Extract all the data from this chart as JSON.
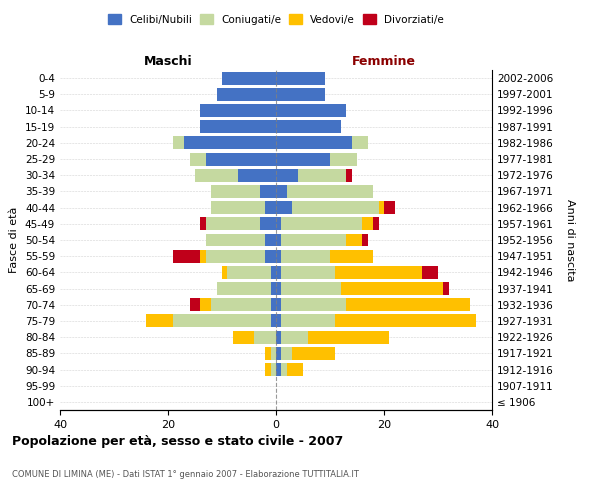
{
  "age_groups": [
    "100+",
    "95-99",
    "90-94",
    "85-89",
    "80-84",
    "75-79",
    "70-74",
    "65-69",
    "60-64",
    "55-59",
    "50-54",
    "45-49",
    "40-44",
    "35-39",
    "30-34",
    "25-29",
    "20-24",
    "15-19",
    "10-14",
    "5-9",
    "0-4"
  ],
  "birth_years": [
    "≤ 1906",
    "1907-1911",
    "1912-1916",
    "1917-1921",
    "1922-1926",
    "1927-1931",
    "1932-1936",
    "1937-1941",
    "1942-1946",
    "1947-1951",
    "1952-1956",
    "1957-1961",
    "1962-1966",
    "1967-1971",
    "1972-1976",
    "1977-1981",
    "1982-1986",
    "1987-1991",
    "1992-1996",
    "1997-2001",
    "2002-2006"
  ],
  "males": {
    "celibi": [
      0,
      0,
      0,
      0,
      0,
      1,
      1,
      1,
      1,
      2,
      2,
      3,
      2,
      3,
      7,
      13,
      17,
      14,
      14,
      11,
      10
    ],
    "coniugati": [
      0,
      0,
      1,
      1,
      4,
      18,
      11,
      10,
      8,
      11,
      11,
      10,
      10,
      9,
      8,
      3,
      2,
      0,
      0,
      0,
      0
    ],
    "vedovi": [
      0,
      0,
      1,
      1,
      4,
      5,
      2,
      0,
      1,
      1,
      0,
      0,
      0,
      0,
      0,
      0,
      0,
      0,
      0,
      0,
      0
    ],
    "divorziati": [
      0,
      0,
      0,
      0,
      0,
      0,
      2,
      0,
      0,
      5,
      0,
      1,
      0,
      0,
      0,
      0,
      0,
      0,
      0,
      0,
      0
    ]
  },
  "females": {
    "nubili": [
      0,
      0,
      1,
      1,
      1,
      1,
      1,
      1,
      1,
      1,
      1,
      1,
      3,
      2,
      4,
      10,
      14,
      12,
      13,
      9,
      9
    ],
    "coniugate": [
      0,
      0,
      1,
      2,
      5,
      10,
      12,
      11,
      10,
      9,
      12,
      15,
      16,
      16,
      9,
      5,
      3,
      0,
      0,
      0,
      0
    ],
    "vedove": [
      0,
      0,
      3,
      8,
      15,
      26,
      23,
      19,
      16,
      8,
      3,
      2,
      1,
      0,
      0,
      0,
      0,
      0,
      0,
      0,
      0
    ],
    "divorziate": [
      0,
      0,
      0,
      0,
      0,
      0,
      0,
      1,
      3,
      0,
      1,
      1,
      2,
      0,
      1,
      0,
      0,
      0,
      0,
      0,
      0
    ]
  },
  "colors": {
    "celibi": "#4472c4",
    "coniugati": "#c5d9a0",
    "vedovi": "#ffc000",
    "divorziati": "#c0001a"
  },
  "xlim": 40,
  "title": "Popolazione per età, sesso e stato civile - 2007",
  "subtitle": "COMUNE DI LIMINA (ME) - Dati ISTAT 1° gennaio 2007 - Elaborazione TUTTITALIA.IT",
  "ylabel_left": "Fasce di età",
  "ylabel_right": "Anni di nascita",
  "xlabel_left": "Maschi",
  "xlabel_right": "Femmine"
}
